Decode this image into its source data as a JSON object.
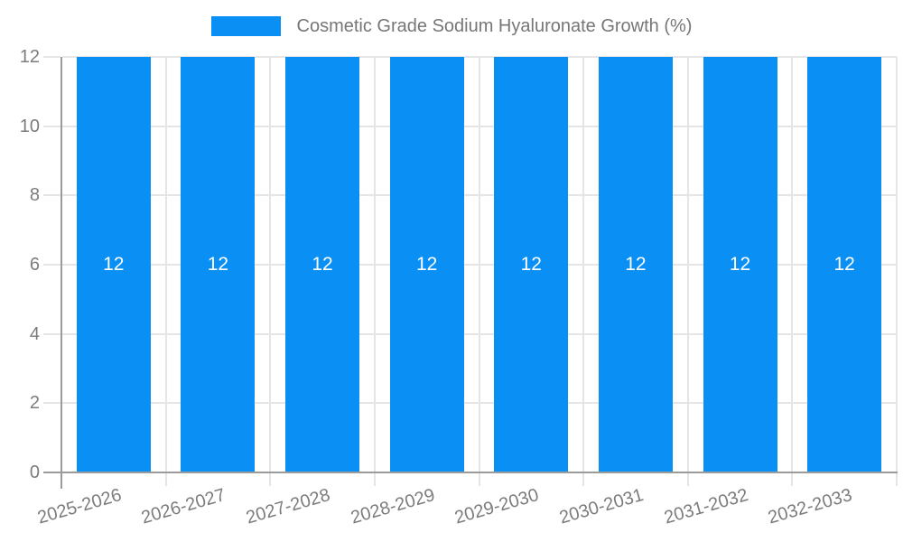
{
  "chart_data": {
    "type": "bar",
    "title": "Cosmetic Grade Sodium Hyaluronate Growth (%)",
    "categories": [
      "2025-2026",
      "2026-2027",
      "2027-2028",
      "2028-2029",
      "2029-2030",
      "2030-2031",
      "2031-2032",
      "2032-2033"
    ],
    "series": [
      {
        "name": "Cosmetic Grade Sodium Hyaluronate Growth (%)",
        "color": "#0a8ff5",
        "values": [
          12,
          12,
          12,
          12,
          12,
          12,
          12,
          12
        ],
        "data_labels": [
          "12",
          "12",
          "12",
          "12",
          "12",
          "12",
          "12",
          "12"
        ]
      }
    ],
    "xlabel": "",
    "ylabel": "",
    "ylim": [
      0,
      12
    ],
    "yticks": [
      0,
      2,
      4,
      6,
      8,
      10,
      12
    ],
    "ytick_labels": [
      "0",
      "2",
      "4",
      "6",
      "8",
      "10",
      "12"
    ],
    "grid": "on",
    "legend_position": "top",
    "colors": {
      "bar_fill": "#0a8ff5",
      "grid_line": "#e5e5e5",
      "axis_line": "#9b9b9b",
      "tick_text": "#7c7c7c",
      "legend_text": "#767676",
      "bar_label_text": "#ffffff",
      "background": "#ffffff"
    }
  }
}
